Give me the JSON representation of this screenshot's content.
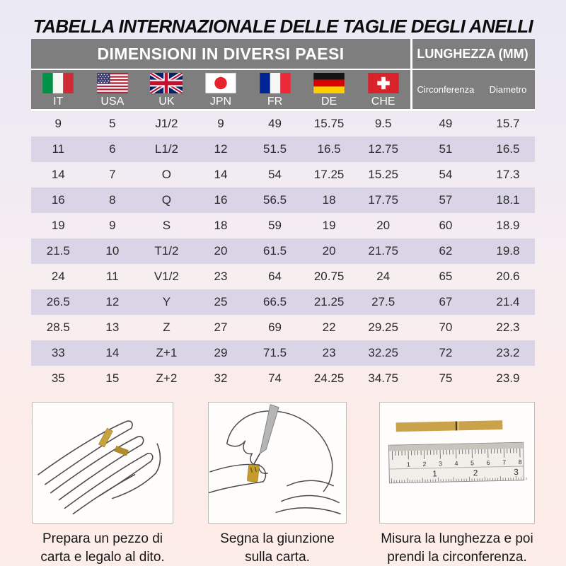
{
  "title": "TABELLA INTERNAZIONALE DELLE TAGLIE DEGLI ANELLI",
  "table": {
    "header_left": "DIMENSIONI IN DIVERSI PAESI",
    "header_right": "LUNGHEZZA (MM)",
    "countries": [
      {
        "code": "IT",
        "flag": "italy-flag"
      },
      {
        "code": "USA",
        "flag": "usa-flag"
      },
      {
        "code": "UK",
        "flag": "uk-flag"
      },
      {
        "code": "JPN",
        "flag": "japan-flag"
      },
      {
        "code": "FR",
        "flag": "france-flag"
      },
      {
        "code": "DE",
        "flag": "germany-flag"
      },
      {
        "code": "CHE",
        "flag": "switzerland-flag"
      }
    ],
    "length_columns": [
      "Circonferenza",
      "Diametro"
    ],
    "rows": [
      [
        "9",
        "5",
        "J1/2",
        "9",
        "49",
        "15.75",
        "9.5",
        "49",
        "15.7"
      ],
      [
        "11",
        "6",
        "L1/2",
        "12",
        "51.5",
        "16.5",
        "12.75",
        "51",
        "16.5"
      ],
      [
        "14",
        "7",
        "O",
        "14",
        "54",
        "17.25",
        "15.25",
        "54",
        "17.3"
      ],
      [
        "16",
        "8",
        "Q",
        "16",
        "56.5",
        "18",
        "17.75",
        "57",
        "18.1"
      ],
      [
        "19",
        "9",
        "S",
        "18",
        "59",
        "19",
        "20",
        "60",
        "18.9"
      ],
      [
        "21.5",
        "10",
        "T1/2",
        "20",
        "61.5",
        "20",
        "21.75",
        "62",
        "19.8"
      ],
      [
        "24",
        "11",
        "V1/2",
        "23",
        "64",
        "20.75",
        "24",
        "65",
        "20.6"
      ],
      [
        "26.5",
        "12",
        "Y",
        "25",
        "66.5",
        "21.25",
        "27.5",
        "67",
        "21.4"
      ],
      [
        "28.5",
        "13",
        "Z",
        "27",
        "69",
        "22",
        "29.25",
        "70",
        "22.3"
      ],
      [
        "33",
        "14",
        "Z+1",
        "29",
        "71.5",
        "23",
        "32.25",
        "72",
        "23.2"
      ],
      [
        "35",
        "15",
        "Z+2",
        "32",
        "74",
        "24.25",
        "34.75",
        "75",
        "23.9"
      ]
    ]
  },
  "instructions": [
    {
      "line1": "Prepara un pezzo di",
      "line2": "carta e legalo al dito."
    },
    {
      "line1": "Segna la giunzione",
      "line2": "sulla carta."
    },
    {
      "line1": "Misura la lunghezza e poi",
      "line2": "prendi la circonferenza."
    }
  ],
  "ruler": {
    "top_scale": [
      "1",
      "2",
      "3",
      "4",
      "5",
      "6",
      "7",
      "8"
    ],
    "bottom_scale": [
      "1",
      "2",
      "3"
    ]
  },
  "colors": {
    "header_gray": "#7e7e7e",
    "row_highlight": "#d9d4e6",
    "paper_strip": "#c9a24a"
  }
}
